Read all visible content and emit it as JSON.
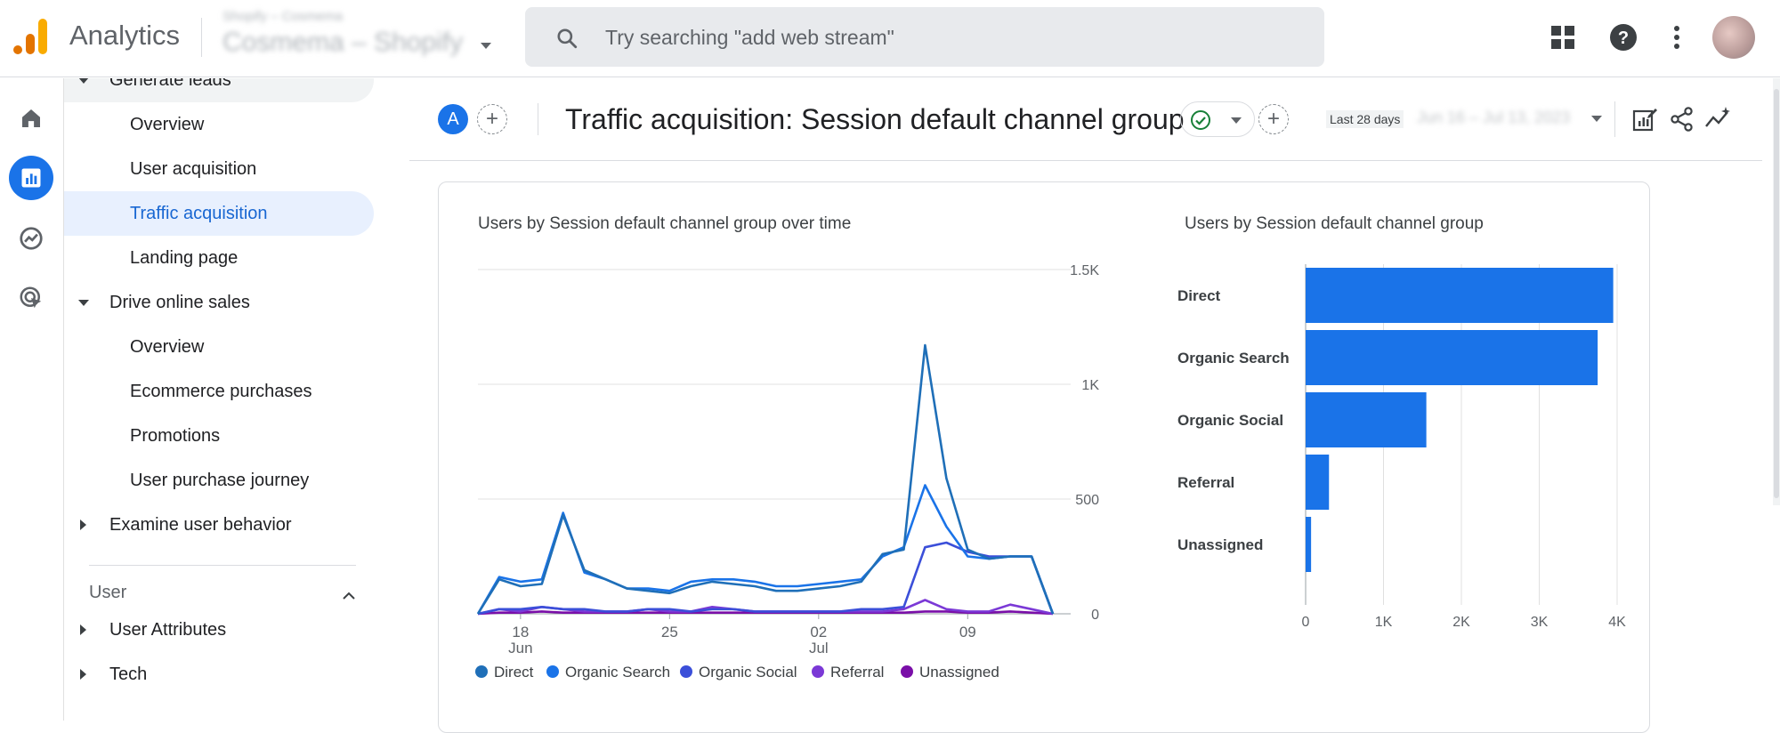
{
  "topbar": {
    "app_name": "Analytics",
    "property_small": "Shopify – Cosmema",
    "property_name": "Cosmema – Shopify",
    "search_placeholder": "Try searching \"add web stream\""
  },
  "nav": {
    "items": [
      {
        "label": "Generate leads",
        "level": 1,
        "expander": "down"
      },
      {
        "label": "Overview",
        "level": 2
      },
      {
        "label": "User acquisition",
        "level": 2
      },
      {
        "label": "Traffic acquisition",
        "level": 2,
        "selected": true
      },
      {
        "label": "Landing page",
        "level": 2
      },
      {
        "label": "Drive online sales",
        "level": 1,
        "expander": "down"
      },
      {
        "label": "Overview",
        "level": 2
      },
      {
        "label": "Ecommerce purchases",
        "level": 2
      },
      {
        "label": "Promotions",
        "level": 2
      },
      {
        "label": "User purchase journey",
        "level": 2
      },
      {
        "label": "Examine user behavior",
        "level": 1,
        "expander": "right"
      }
    ],
    "section_label": "User",
    "section_items": [
      {
        "label": "User Attributes",
        "expander": "right"
      },
      {
        "label": "Tech",
        "expander": "right"
      }
    ]
  },
  "header": {
    "comparison_badge": "A",
    "title": "Traffic acquisition: Session default channel group",
    "date_label": "Last 28 days",
    "date_range": "Jun 16 – Jul 13, 2023"
  },
  "colors": {
    "Direct": "#1f6fb8",
    "Organic Search": "#1a73e8",
    "Organic Social": "#3b4fd9",
    "Referral": "#7b39d6",
    "Unassigned": "#7a0fa8",
    "bar": "#1a73e8"
  },
  "chart_data": [
    {
      "type": "line",
      "title": "Users by Session default channel group over time",
      "x_ticks": [
        {
          "day": "18",
          "month": "Jun"
        },
        {
          "day": "25",
          "month": ""
        },
        {
          "day": "02",
          "month": "Jul"
        },
        {
          "day": "09",
          "month": ""
        }
      ],
      "x": [
        "Jun 16",
        "Jun 17",
        "Jun 18",
        "Jun 19",
        "Jun 20",
        "Jun 21",
        "Jun 22",
        "Jun 23",
        "Jun 24",
        "Jun 25",
        "Jun 26",
        "Jun 27",
        "Jun 28",
        "Jun 29",
        "Jun 30",
        "Jul 1",
        "Jul 2",
        "Jul 3",
        "Jul 4",
        "Jul 5",
        "Jul 6",
        "Jul 7",
        "Jul 8",
        "Jul 9",
        "Jul 10",
        "Jul 11",
        "Jul 12",
        "Jul 13"
      ],
      "y_ticks": [
        "0",
        "500",
        "1K",
        "1.5K"
      ],
      "ylim": [
        0,
        1500
      ],
      "series": [
        {
          "name": "Direct",
          "values": [
            0,
            150,
            120,
            130,
            430,
            190,
            150,
            110,
            100,
            90,
            120,
            140,
            130,
            120,
            100,
            100,
            110,
            120,
            140,
            260,
            280,
            1170,
            590,
            280,
            240,
            250,
            250,
            0
          ]
        },
        {
          "name": "Organic Search",
          "values": [
            0,
            160,
            140,
            150,
            440,
            180,
            150,
            110,
            110,
            100,
            140,
            150,
            150,
            140,
            120,
            120,
            130,
            140,
            150,
            250,
            290,
            560,
            380,
            250,
            240,
            250,
            250,
            0
          ]
        },
        {
          "name": "Organic Social",
          "values": [
            0,
            20,
            20,
            30,
            20,
            20,
            10,
            10,
            20,
            20,
            10,
            20,
            20,
            10,
            10,
            10,
            10,
            10,
            20,
            20,
            30,
            290,
            310,
            270,
            250,
            250,
            250,
            0
          ]
        },
        {
          "name": "Referral",
          "values": [
            0,
            20,
            10,
            30,
            20,
            10,
            10,
            10,
            20,
            10,
            10,
            30,
            20,
            10,
            10,
            10,
            10,
            10,
            10,
            10,
            20,
            60,
            20,
            10,
            10,
            40,
            20,
            0
          ]
        },
        {
          "name": "Unassigned",
          "values": [
            0,
            5,
            5,
            10,
            5,
            5,
            5,
            5,
            5,
            5,
            5,
            5,
            5,
            5,
            5,
            5,
            5,
            5,
            5,
            5,
            5,
            10,
            10,
            5,
            5,
            10,
            5,
            0
          ]
        }
      ],
      "legend": "bottom"
    },
    {
      "type": "bar",
      "orientation": "horizontal",
      "title": "Users by Session default channel group",
      "categories": [
        "Direct",
        "Organic Search",
        "Organic Social",
        "Referral",
        "Unassigned"
      ],
      "values": [
        3950,
        3750,
        1550,
        300,
        70
      ],
      "x_ticks": [
        "0",
        "1K",
        "2K",
        "3K",
        "4K"
      ],
      "xlim": [
        0,
        4000
      ]
    }
  ]
}
